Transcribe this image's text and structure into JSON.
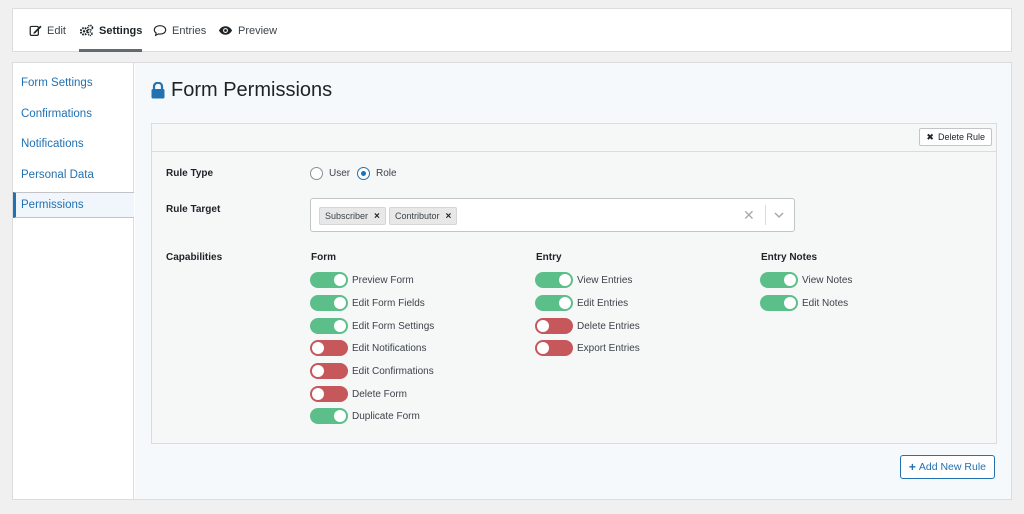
{
  "tabs": [
    {
      "label": "Edit",
      "icon": "edit-icon"
    },
    {
      "label": "Settings",
      "icon": "gears-icon",
      "active": true
    },
    {
      "label": "Entries",
      "icon": "speech-bubble-icon"
    },
    {
      "label": "Preview",
      "icon": "eye-icon"
    }
  ],
  "sidebar": {
    "items": [
      {
        "label": "Form Settings"
      },
      {
        "label": "Confirmations"
      },
      {
        "label": "Notifications"
      },
      {
        "label": "Personal Data"
      },
      {
        "label": "Permissions",
        "active": true
      }
    ]
  },
  "page": {
    "title": "Form Permissions",
    "title_icon": "lock-icon"
  },
  "rule": {
    "delete_label": "Delete Rule",
    "rule_type_label": "Rule Type",
    "rule_type_options": [
      {
        "label": "User",
        "selected": false
      },
      {
        "label": "Role",
        "selected": true
      }
    ],
    "rule_target_label": "Rule Target",
    "rule_target_values": [
      "Subscriber",
      "Contributor"
    ],
    "capabilities_label": "Capabilities",
    "columns": [
      {
        "heading": "Form",
        "items": [
          {
            "label": "Preview Form",
            "enabled": true
          },
          {
            "label": "Edit Form Fields",
            "enabled": true
          },
          {
            "label": "Edit Form Settings",
            "enabled": true
          },
          {
            "label": "Edit Notifications",
            "enabled": false
          },
          {
            "label": "Edit Confirmations",
            "enabled": false
          },
          {
            "label": "Delete Form",
            "enabled": false
          },
          {
            "label": "Duplicate Form",
            "enabled": true
          }
        ]
      },
      {
        "heading": "Entry",
        "items": [
          {
            "label": "View Entries",
            "enabled": true
          },
          {
            "label": "Edit Entries",
            "enabled": true
          },
          {
            "label": "Delete Entries",
            "enabled": false
          },
          {
            "label": "Export Entries",
            "enabled": false
          }
        ]
      },
      {
        "heading": "Entry Notes",
        "items": [
          {
            "label": "View Notes",
            "enabled": true
          },
          {
            "label": "Edit Notes",
            "enabled": true
          }
        ]
      }
    ]
  },
  "add_rule_label": "Add New Rule",
  "colors": {
    "accent": "#2271b1",
    "toggle_on": "#5cbf8a",
    "toggle_off": "#c6575a"
  }
}
